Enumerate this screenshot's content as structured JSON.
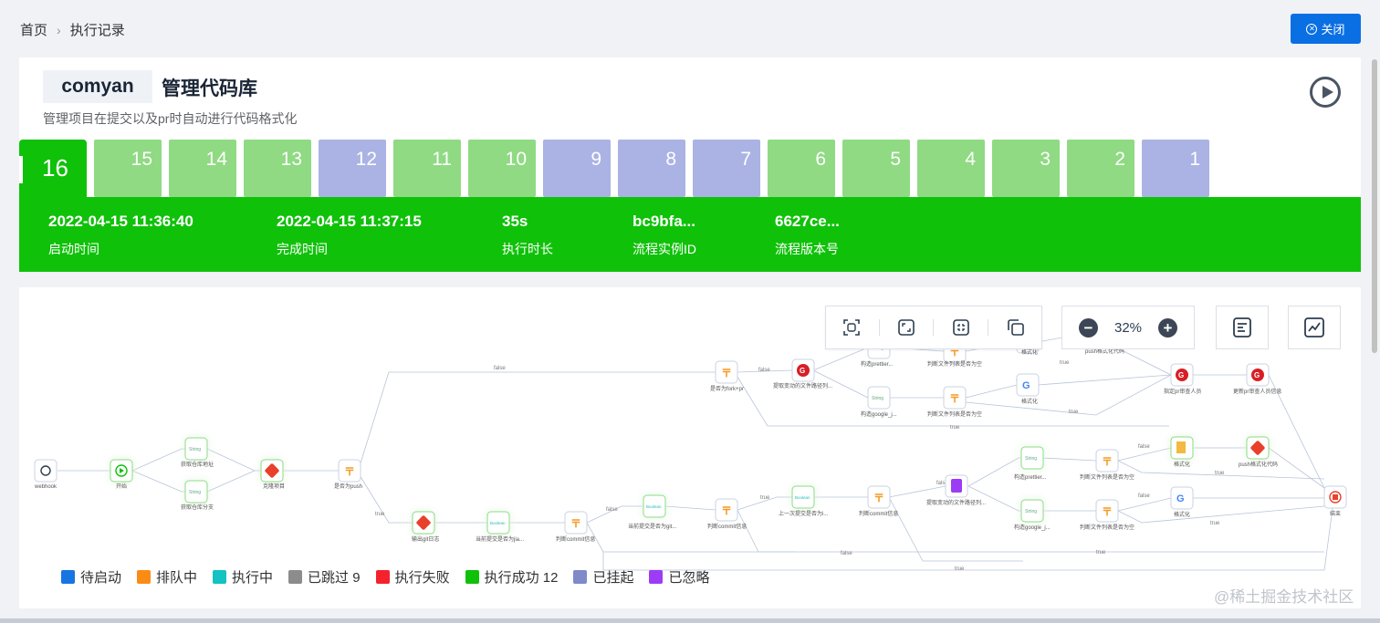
{
  "breadcrumb": {
    "home": "首页",
    "current": "执行记录"
  },
  "close_button": "关闭",
  "project": {
    "owner": "comyan",
    "title": "管理代码库",
    "description": "管理项目在提交以及pr时自动进行代码格式化"
  },
  "tabs": [
    {
      "label": "16",
      "status": "active"
    },
    {
      "label": "15",
      "status": "success"
    },
    {
      "label": "14",
      "status": "success"
    },
    {
      "label": "13",
      "status": "success"
    },
    {
      "label": "12",
      "status": "suspended"
    },
    {
      "label": "11",
      "status": "success"
    },
    {
      "label": "10",
      "status": "success"
    },
    {
      "label": "9",
      "status": "suspended"
    },
    {
      "label": "8",
      "status": "suspended"
    },
    {
      "label": "7",
      "status": "suspended"
    },
    {
      "label": "6",
      "status": "success"
    },
    {
      "label": "5",
      "status": "success"
    },
    {
      "label": "4",
      "status": "success"
    },
    {
      "label": "3",
      "status": "success"
    },
    {
      "label": "2",
      "status": "success"
    },
    {
      "label": "1",
      "status": "suspended"
    }
  ],
  "info": {
    "start_time": {
      "value": "2022-04-15 11:36:40",
      "label": "启动时间"
    },
    "end_time": {
      "value": "2022-04-15 11:37:15",
      "label": "完成时间"
    },
    "duration": {
      "value": "35s",
      "label": "执行时长"
    },
    "instance_id": {
      "value": "bc9bfa...",
      "label": "流程实例ID"
    },
    "version": {
      "value": "6627ce...",
      "label": "流程版本号"
    }
  },
  "zoom": "32%",
  "legend": [
    {
      "label": "待启动",
      "color": "#1675e0"
    },
    {
      "label": "排队中",
      "color": "#fa8c16"
    },
    {
      "label": "执行中",
      "color": "#13c2c2"
    },
    {
      "label": "已跳过 9",
      "color": "#8c8c8c"
    },
    {
      "label": "执行失败",
      "color": "#f5222d"
    },
    {
      "label": "执行成功 12",
      "color": "#10c10a"
    },
    {
      "label": "已挂起",
      "color": "#7f8ac9"
    },
    {
      "label": "已忽略",
      "color": "#9c3cf5"
    }
  ],
  "nodes": {
    "webhook": "webhook",
    "start": "开始",
    "get_repo_url": "获取仓库地址",
    "get_repo_branch": "获取仓库分支",
    "clone": "克隆项目",
    "is_push": "是否为push",
    "is_fork_pr": "是否为fork+pr",
    "get_changed_1": "提取变动的文件路径列...",
    "build_prettier_1": "构造prettier...",
    "build_google_1": "构造google_j...",
    "judge_list_1": "判断文件列表是否为空",
    "judge_list_2": "判断文件列表是否为空",
    "format_1": "格式化",
    "format_2": "格式化",
    "push_format_1": "push格式化代码",
    "specify_reviewer": "指定pr审查人员",
    "update_reviewer": "更新pr审查人员信息",
    "output_log": "输出git日志",
    "current_commit": "当前提交是否为jia...",
    "judge_commit_1": "判断commit信息",
    "current_commit_git": "当前提交是否为git...",
    "judge_commit_2": "判断commit信息",
    "prev_commit_empty": "上一次提交是否为i...",
    "judge_commit_3": "判断commit信息",
    "get_changed_2": "提取变动的文件路径列...",
    "build_prettier_2": "构造prettier...",
    "build_google_2": "构造google_j...",
    "judge_list_3": "判断文件列表是否为空",
    "judge_list_4": "判断文件列表是否为空",
    "format_3": "格式化",
    "format_4": "格式化",
    "push_format_2": "push格式化代码",
    "end": "结束"
  },
  "edge_labels": {
    "false": "false",
    "true": "true"
  },
  "watermark": "@稀土掘金技术社区"
}
